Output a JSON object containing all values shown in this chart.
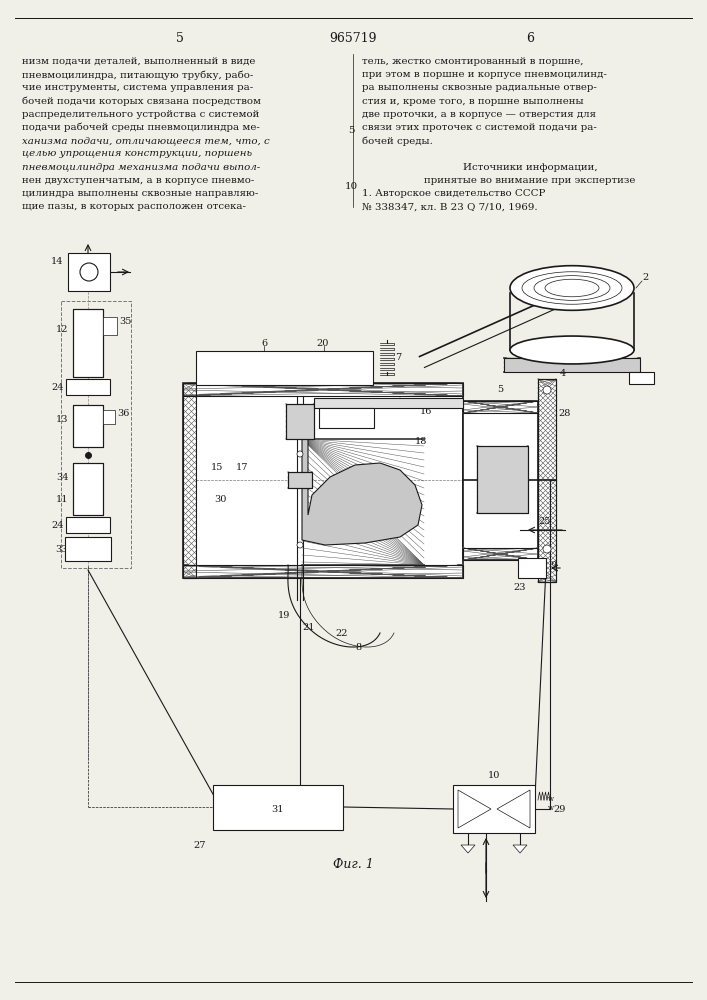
{
  "title_number": "965719",
  "page_left": "5",
  "page_right": "6",
  "fig_label": "Фиг. 1",
  "text_left_lines": [
    "низм подачи деталей, выполненный в виде",
    "пневмоцилиндра, питающую трубку, рабо-",
    "чие инструменты, система управления ра-",
    "бочей подачи которых связана посредством",
    "распределительного устройства с системой",
    "подачи рабочей среды пневмоцилиндра ме-",
    "ханизма подачи, отличающееся тем, что, с",
    "целью упрощения конструкции, поршень",
    "пневмоцилиндра механизма подачи выпол-",
    "нен двухступенчатым, а в корпусе пневмо-",
    "цилиндра выполнены сквозные направляю-",
    "щие пазы, в которых расположен отсека-"
  ],
  "text_right_lines": [
    "тель, жестко смонтированный в поршне,",
    "при этом в поршне и корпусе пневмоцилинд-",
    "ра выполнены сквозные радиальные отвер-",
    "стия и, кроме того, в поршне выполнены",
    "две проточки, а в корпусе — отверстия для",
    "связи этих проточек с системой подачи ра-",
    "бочей среды."
  ],
  "sources_title": "Источники информации,",
  "sources_subtitle": "принятые во внимание при экспертизе",
  "sources_ref1": "1. Авторское свидетельство СССР",
  "sources_ref2": "№ 338347, кл. В 23 Q 7/10, 1969.",
  "line_num_5": "5",
  "line_num_10": "10",
  "bg_color": "#f0efe8",
  "dc": "#1a1a1a"
}
